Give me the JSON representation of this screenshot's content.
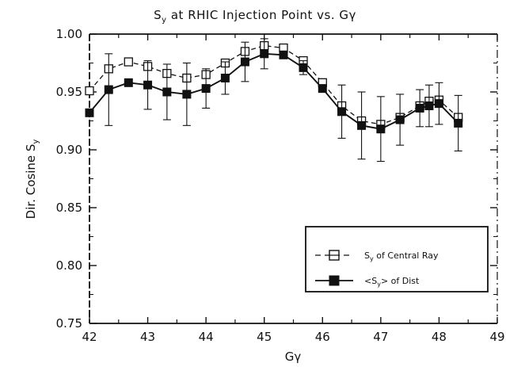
{
  "chart_data": {
    "type": "line",
    "title": "Sy at RHIC Injection Point vs. Gγ",
    "title_parts": {
      "s": "S",
      "sub": "y",
      "rest": " at RHIC Injection Point vs. Gγ"
    },
    "xlabel": "Gγ",
    "ylabel": "Dir. Cosine Sy",
    "ylabel_parts": {
      "main": "Dir. Cosine S",
      "sub": "y"
    },
    "xlim": [
      42,
      49
    ],
    "ylim": [
      0.75,
      1.0
    ],
    "x_ticks": [
      "42",
      "43",
      "44",
      "45",
      "46",
      "47",
      "48",
      "49"
    ],
    "y_ticks": [
      "0.75",
      "0.80",
      "0.85",
      "0.90",
      "0.95",
      "1.00"
    ],
    "legend_position": "bottom-right",
    "series": [
      {
        "name": "Sy of Central Ray",
        "legend_parts": {
          "pre": "S",
          "sub": "y",
          "post": " of Central Ray"
        },
        "marker": "open-square",
        "line": "dashed",
        "x": [
          42.0,
          42.33,
          42.67,
          43.0,
          43.33,
          43.67,
          44.0,
          44.33,
          44.67,
          45.0,
          45.33,
          45.67,
          46.0,
          46.33,
          46.67,
          47.0,
          47.33,
          47.67,
          47.83,
          48.0,
          48.33
        ],
        "y": [
          0.951,
          0.97,
          0.976,
          0.972,
          0.966,
          0.962,
          0.965,
          0.975,
          0.985,
          0.99,
          0.988,
          0.977,
          0.958,
          0.938,
          0.925,
          0.922,
          0.928,
          0.938,
          0.942,
          0.943,
          0.928
        ]
      },
      {
        "name": "<Sy> of Dist",
        "legend_parts": {
          "pre": "<S",
          "sub": "y",
          "post": "> of Dist"
        },
        "marker": "filled-square",
        "line": "solid",
        "x": [
          42.0,
          42.33,
          42.67,
          43.0,
          43.33,
          43.67,
          44.0,
          44.33,
          44.67,
          45.0,
          45.33,
          45.67,
          46.0,
          46.33,
          46.67,
          47.0,
          47.33,
          47.67,
          47.83,
          48.0,
          48.33
        ],
        "y": [
          0.932,
          0.952,
          0.958,
          0.956,
          0.95,
          0.948,
          0.953,
          0.962,
          0.976,
          0.983,
          0.982,
          0.971,
          0.953,
          0.933,
          0.921,
          0.918,
          0.926,
          0.936,
          0.938,
          0.94,
          0.923
        ],
        "err": [
          0.0,
          0.031,
          0.0,
          0.021,
          0.024,
          0.027,
          0.017,
          0.014,
          0.017,
          0.013,
          0.0,
          0.006,
          0.0,
          0.023,
          0.029,
          0.028,
          0.022,
          0.016,
          0.018,
          0.018,
          0.024
        ]
      }
    ]
  }
}
